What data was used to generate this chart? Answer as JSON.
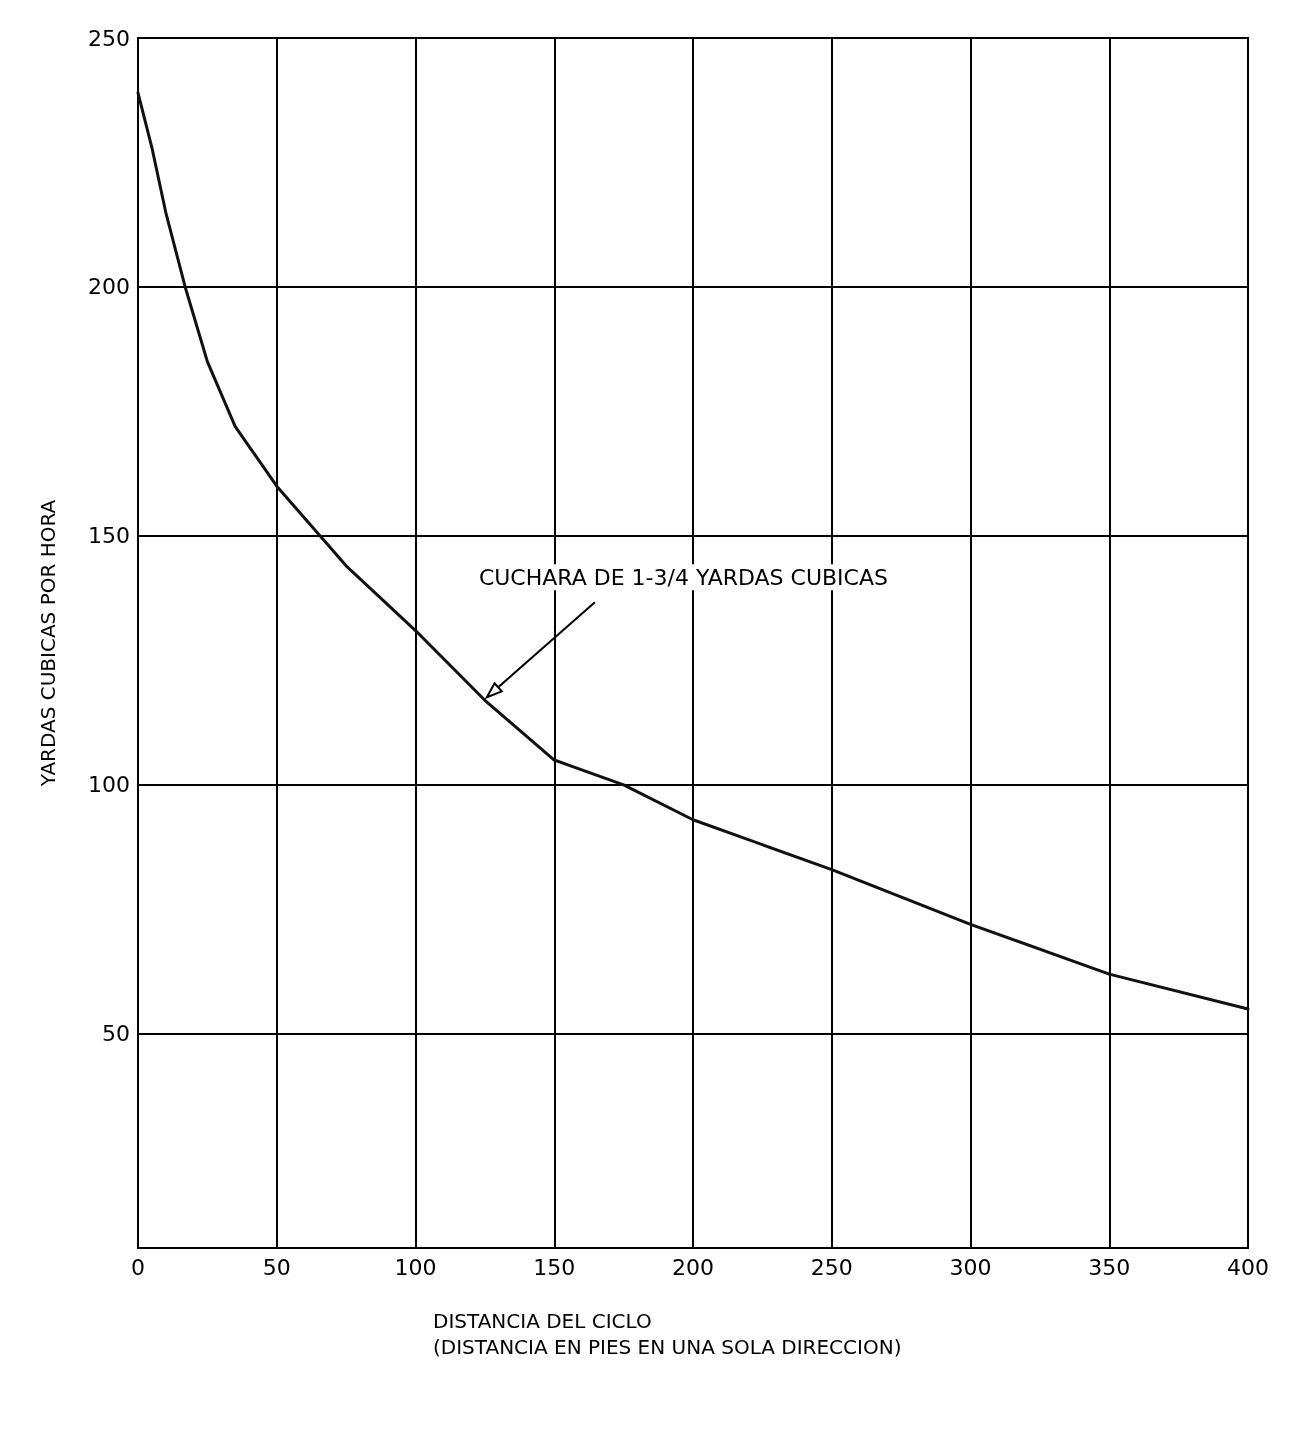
{
  "chart_data": {
    "type": "line",
    "xlabel": "DISTANCIA DEL CICLO\n(DISTANCIA EN PIES EN UNA SOLA DIRECCION)",
    "ylabel": "YARDAS CUBICAS POR HORA",
    "x": [
      0,
      5,
      10,
      17,
      25,
      35,
      50,
      75,
      100,
      125,
      150,
      175,
      200,
      250,
      300,
      350,
      400
    ],
    "series": [
      {
        "color": "#111111",
        "values": [
          239,
          228,
          215,
          200,
          185,
          172,
          160,
          144,
          131,
          117,
          105,
          100,
          93,
          83,
          72,
          62,
          55
        ]
      }
    ],
    "xlim": [
      0,
      400
    ],
    "xticks": [
      0,
      50,
      100,
      150,
      200,
      250,
      300,
      350,
      400
    ],
    "ylim": [
      7,
      250
    ],
    "yticks": [
      50,
      100,
      150,
      200,
      250
    ],
    "grid": true,
    "marker": "none",
    "line_style": "solid",
    "annotations": [
      {
        "text": "CUCHARA DE 1-3/4 YARDAS CUBICAS",
        "x": 125,
        "y": 117
      }
    ]
  }
}
